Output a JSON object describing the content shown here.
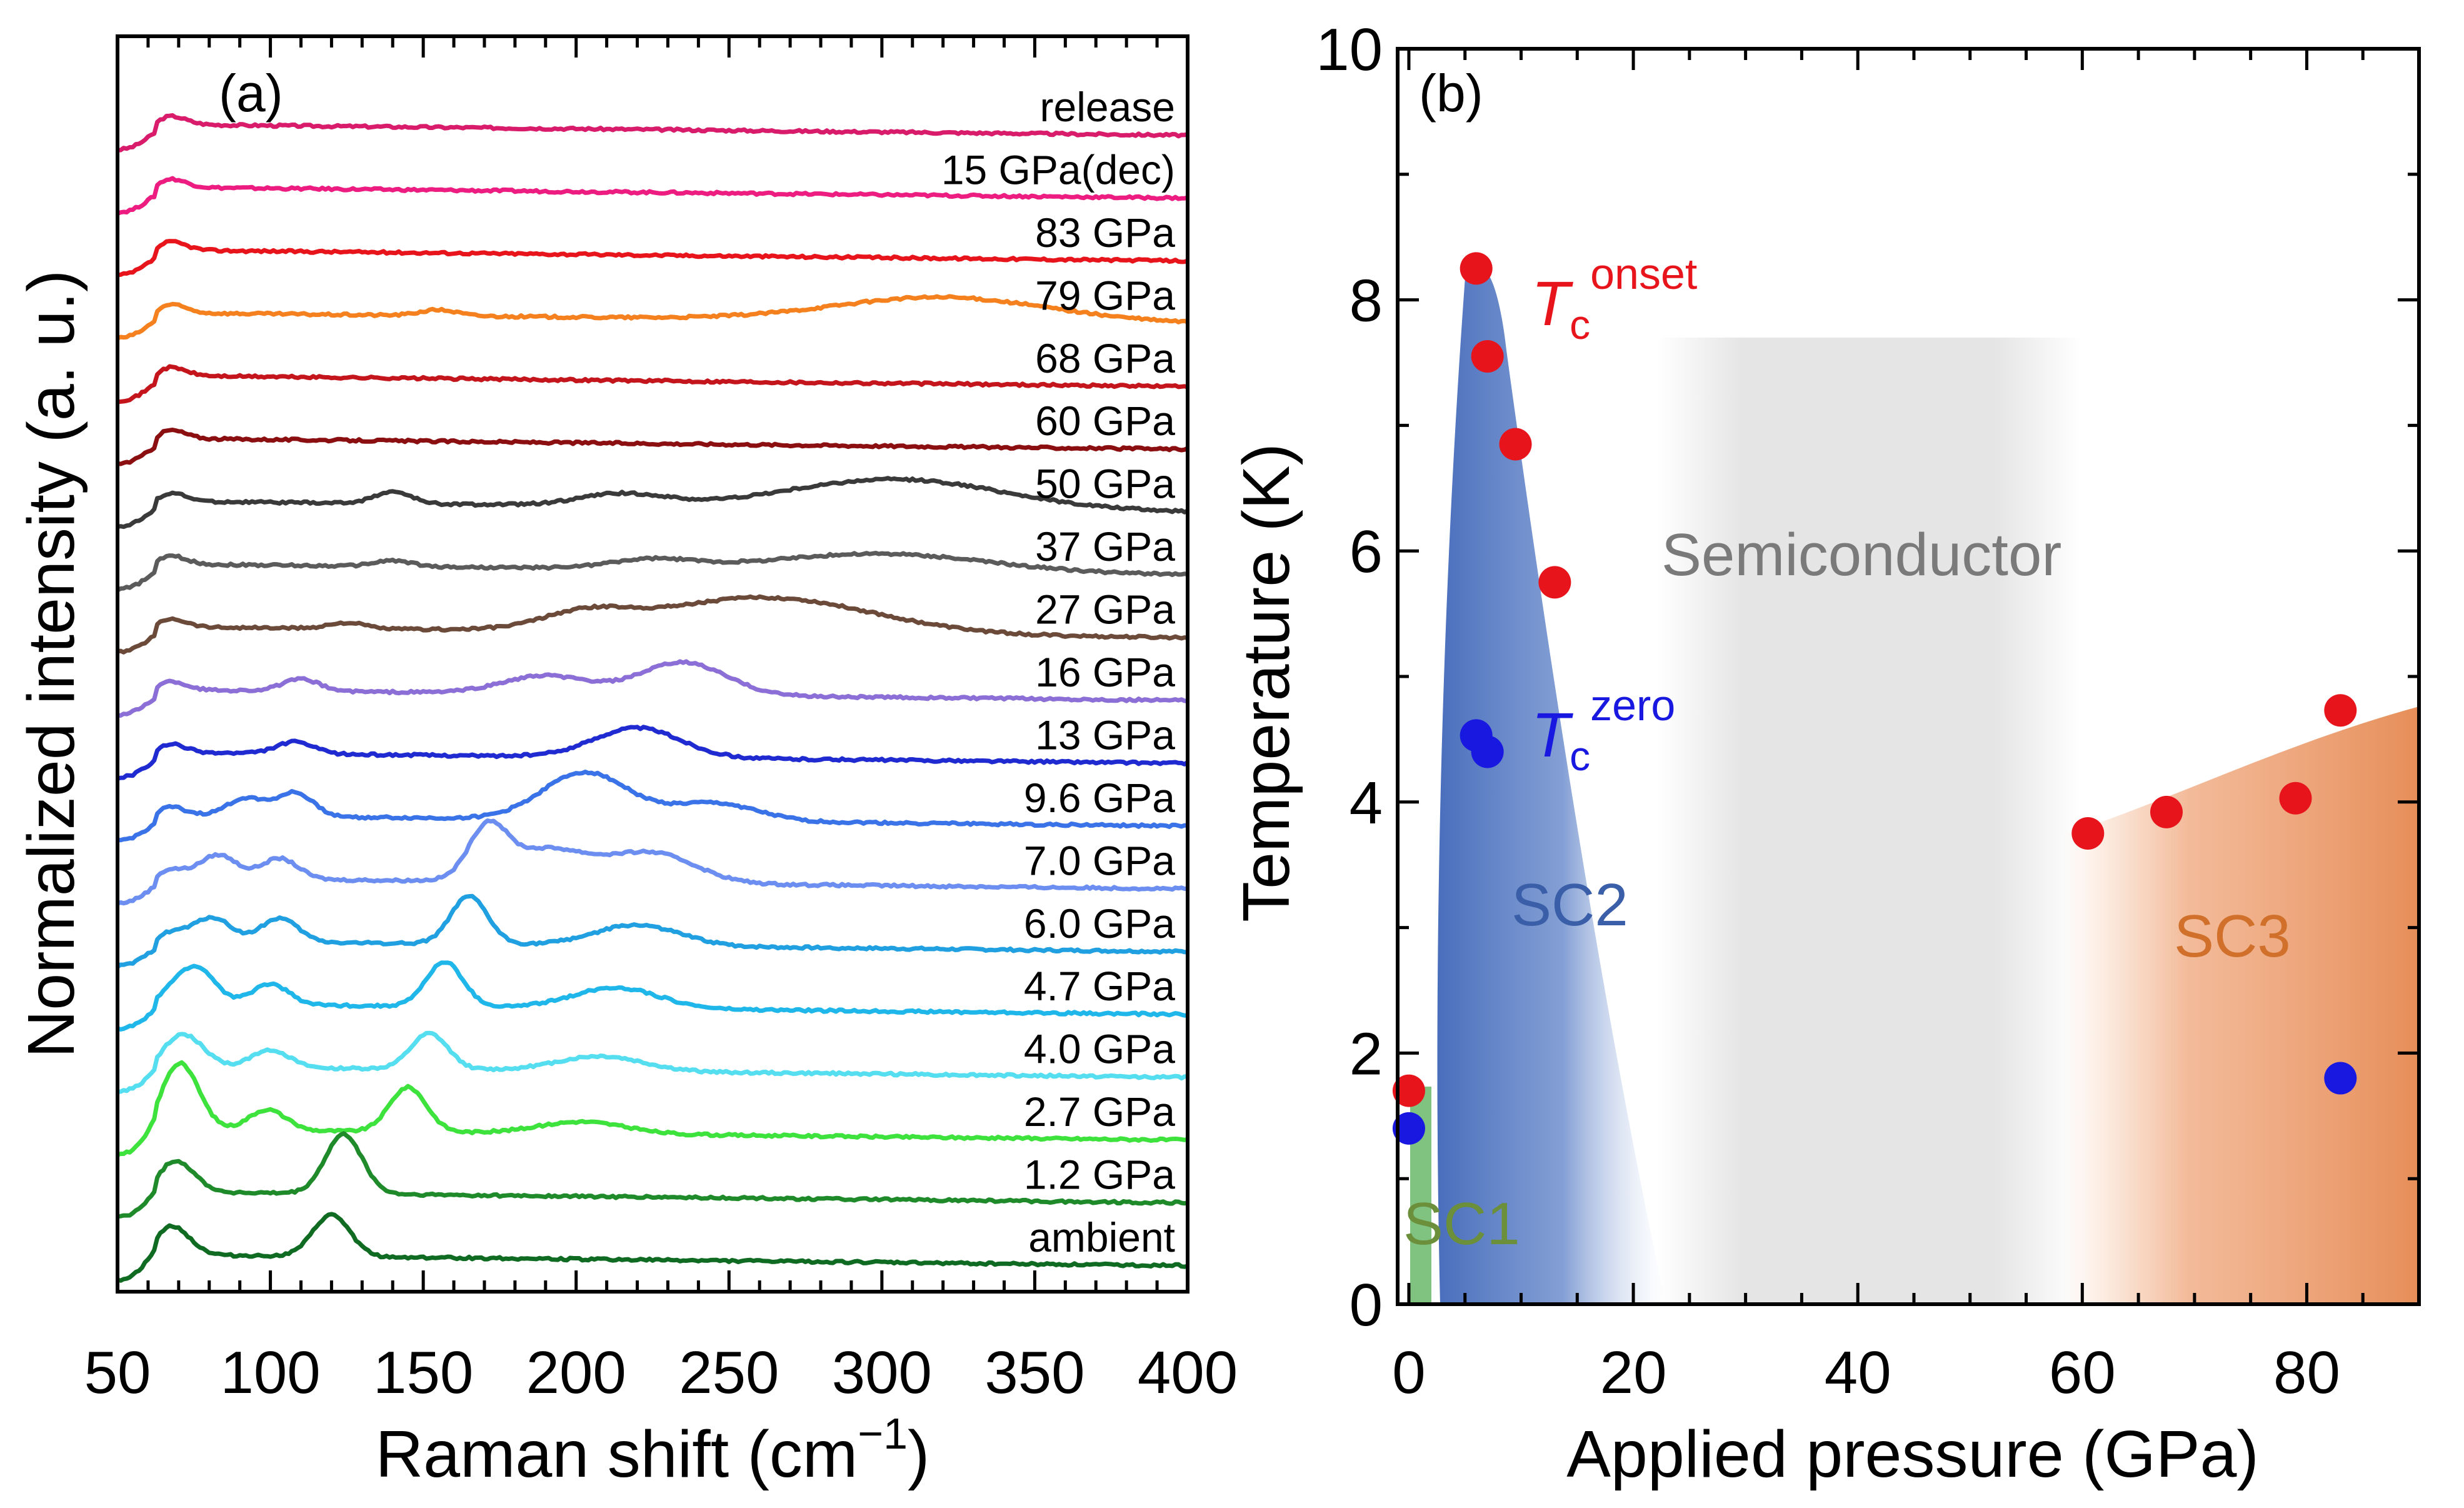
{
  "chart_data": [
    {
      "type": "line",
      "panel": "(a)",
      "xlabel": "Raman shift (cm",
      "xlabel_sup": "−1",
      "xlabel_close": ")",
      "ylabel": "Normalized intensity (a. u.)",
      "xlim": [
        50,
        400
      ],
      "xticks": [
        "50",
        "100",
        "150",
        "200",
        "250",
        "300",
        "350",
        "400"
      ],
      "series": [
        {
          "name": "release",
          "color": "#d81b6a",
          "peaks": []
        },
        {
          "name": "15 GPa(dec)",
          "color": "#ec1c80",
          "peaks": []
        },
        {
          "name": "83 GPa",
          "color": "#e8141c",
          "peaks": []
        },
        {
          "name": "79 GPa",
          "color": "#f5801e",
          "peaks": [
            [
              155,
              0.1
            ],
            [
              320,
              0.4
            ]
          ]
        },
        {
          "name": "68 GPa",
          "color": "#c4151c",
          "peaks": []
        },
        {
          "name": "60 GPa",
          "color": "#8b0f10",
          "peaks": []
        },
        {
          "name": "50 GPa",
          "color": "#3a3a3a",
          "peaks": [
            [
              140,
              0.2
            ],
            [
              215,
              0.2
            ],
            [
              305,
              0.5
            ]
          ]
        },
        {
          "name": "37 GPa",
          "color": "#5b5b5b",
          "peaks": [
            [
              140,
              0.1
            ],
            [
              225,
              0.15
            ],
            [
              300,
              0.3
            ]
          ]
        },
        {
          "name": "27 GPa",
          "color": "#6b4a3a",
          "peaks": [
            [
              125,
              0.1
            ],
            [
              203,
              0.25
            ],
            [
              262,
              0.6
            ]
          ]
        },
        {
          "name": "16 GPa",
          "color": "#8b6fd6",
          "peaks": [
            [
              110,
              0.2
            ],
            [
              190,
              0.3
            ],
            [
              235,
              0.55
            ]
          ]
        },
        {
          "name": "13 GPa",
          "color": "#1f2bd0",
          "peaks": [
            [
              108,
              0.2
            ],
            [
              220,
              0.5
            ]
          ]
        },
        {
          "name": "9.6 GPa",
          "color": "#3a72e8",
          "peaks": [
            [
              92,
              0.3
            ],
            [
              108,
              0.4
            ],
            [
              203,
              0.8
            ],
            [
              245,
              0.3
            ]
          ]
        },
        {
          "name": "7.0 GPa",
          "color": "#6b8ef0",
          "peaks": [
            [
              83,
              0.4
            ],
            [
              103,
              0.35
            ],
            [
              171,
              0.8
            ],
            [
              190,
              0.55
            ],
            [
              225,
              0.5
            ]
          ]
        },
        {
          "name": "6.0 GPa",
          "color": "#20a0e0",
          "peaks": [
            [
              81,
              0.4
            ],
            [
              103,
              0.4
            ],
            [
              165,
              0.8
            ],
            [
              220,
              0.35
            ]
          ]
        },
        {
          "name": "4.7 GPa",
          "color": "#1fb6ea",
          "peaks": [
            [
              76,
              0.6
            ],
            [
              100,
              0.35
            ],
            [
              157,
              0.75
            ],
            [
              213,
              0.35
            ]
          ]
        },
        {
          "name": "4.0 GPa",
          "color": "#55ddf0",
          "peaks": [
            [
              73,
              0.45
            ],
            [
              100,
              0.3
            ],
            [
              152,
              0.6
            ],
            [
              208,
              0.25
            ]
          ]
        },
        {
          "name": "2.7 GPa",
          "color": "#3ee23c",
          "peaks": [
            [
              71,
              1.0
            ],
            [
              99,
              0.35
            ],
            [
              145,
              0.75
            ],
            [
              202,
              0.2
            ]
          ]
        },
        {
          "name": "1.2 GPa",
          "color": "#1e8a2a",
          "peaks": [
            [
              70,
              0.4
            ],
            [
              124,
              1.0
            ]
          ]
        },
        {
          "name": "ambient",
          "color": "#0f6a22",
          "peaks": [
            [
              68,
              0.35
            ],
            [
              120,
              0.7
            ]
          ]
        }
      ]
    },
    {
      "type": "scatter",
      "panel": "(b)",
      "xlabel": "Applied pressure (GPa)",
      "ylabel": "Temperature (K)",
      "xlim": [
        -1,
        90
      ],
      "ylim": [
        0,
        10
      ],
      "xticks": [
        "0",
        "20",
        "40",
        "60",
        "80"
      ],
      "yticks": [
        "0",
        "2",
        "4",
        "6",
        "8",
        "10"
      ],
      "series": [
        {
          "name": "T_c onset",
          "label_main": "T",
          "label_sub": "c",
          "label_sup": "onset",
          "color": "#e8141c",
          "x": [
            0,
            6,
            7,
            9.5,
            13,
            60.5,
            67.5,
            79,
            83
          ],
          "y": [
            1.7,
            8.25,
            7.55,
            6.85,
            5.75,
            3.75,
            3.92,
            4.03,
            4.73
          ]
        },
        {
          "name": "T_c zero",
          "label_main": "T",
          "label_sub": "c",
          "label_sup": "zero",
          "color": "#1818e0",
          "x": [
            0,
            6,
            7,
            83
          ],
          "y": [
            1.4,
            4.53,
            4.4,
            1.8
          ]
        }
      ],
      "regions": [
        {
          "name": "SC1",
          "color": "#6b8f3a"
        },
        {
          "name": "SC2",
          "color": "#3a5ea8"
        },
        {
          "name": "Semiconductor",
          "color": "#7a7a7a"
        },
        {
          "name": "SC3",
          "color": "#d0702a"
        }
      ]
    }
  ]
}
